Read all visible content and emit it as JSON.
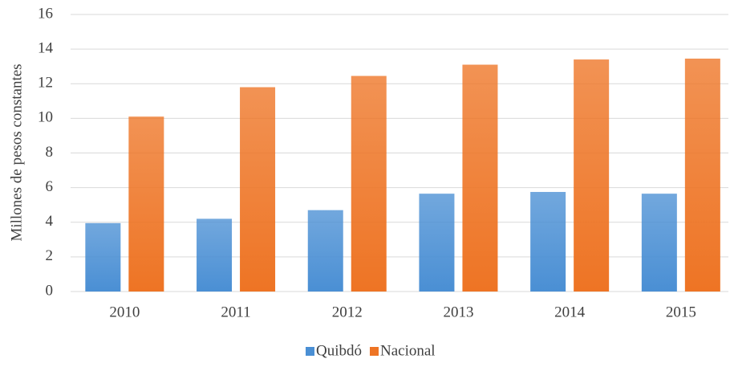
{
  "chart_data": {
    "type": "bar",
    "y_label": "Millones de pesos constantes",
    "categories": [
      "2010",
      "2011",
      "2012",
      "2013",
      "2014",
      "2015"
    ],
    "series": [
      {
        "name": "Quibdó",
        "color": "#4a8fd4",
        "values": [
          3.95,
          4.2,
          4.7,
          5.65,
          5.75,
          5.65
        ]
      },
      {
        "name": "Nacional",
        "color": "#ee7424",
        "values": [
          10.1,
          11.8,
          12.45,
          13.1,
          13.4,
          13.45
        ]
      }
    ],
    "ylim": [
      0,
      16
    ],
    "yticks": [
      0,
      2,
      4,
      6,
      8,
      10,
      12,
      14,
      16
    ],
    "grid": true,
    "legend": "bottom"
  }
}
